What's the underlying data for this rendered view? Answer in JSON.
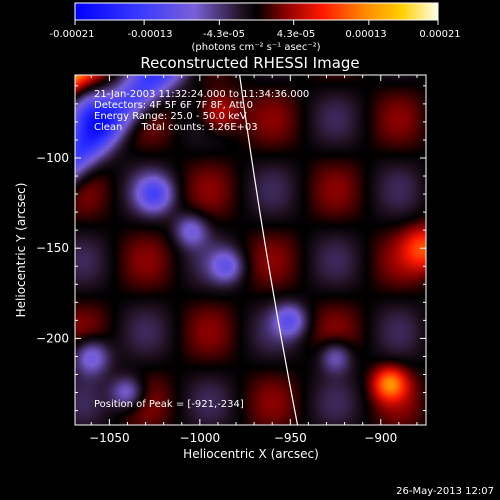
{
  "chart_data": {
    "type": "heatmap",
    "title": "Reconstructed RHESSI Image",
    "xlabel": "Heliocentric X (arcsec)",
    "ylabel": "Heliocentric Y (arcsec)",
    "xlim": [
      -1069,
      -875
    ],
    "ylim": [
      -248,
      -54
    ],
    "x_ticks": [
      -1050,
      -1000,
      -950,
      -900
    ],
    "x_tick_labels": [
      "−1050",
      "−1000",
      "−950",
      "−900"
    ],
    "y_ticks": [
      -100,
      -150,
      -200
    ],
    "y_tick_labels": [
      "−100",
      "−150",
      "−200"
    ],
    "colorbar": {
      "range": [
        -0.00021,
        0.00021
      ],
      "tick_values": [
        -0.00021,
        -0.00013,
        -4.3e-05,
        4.3e-05,
        0.00013,
        0.00021
      ],
      "tick_labels": [
        "-0.00021",
        "-0.00013",
        "-4.3e-05",
        "4.3e-05",
        "0.00013",
        "0.00021"
      ],
      "unit_label": "(photons cm⁻² s⁻¹ asec⁻²)"
    },
    "annotations": [
      "21-Jan-2003 11:32:24.000 to 11:34:36.000",
      "Detectors: 4F 5F 6F 7F 8F, Att 0",
      "Energy Range: 25.0 - 50.0 keV",
      "Clean      Total counts: 3.26E+03"
    ],
    "peak_label": "Position of Peak = [-921,-234]",
    "peak_position": [
      -921,
      -234
    ],
    "limb_curve": [
      [
        -978,
        -54
      ],
      [
        -965,
        -150
      ],
      [
        -946,
        -248
      ]
    ],
    "field": {
      "ridges": [
        {
          "c": -1120,
          "amp": 1.0,
          "w": 20
        },
        {
          "c": -1025,
          "amp": 0.9,
          "w": 20
        },
        {
          "c": -1170,
          "amp": 0.7,
          "w": 16
        },
        {
          "c": -1220,
          "amp": 0.55,
          "w": 16
        }
      ],
      "troughs": [
        {
          "c": -1070,
          "amp": -1.0,
          "w": 17
        },
        {
          "c": -970,
          "amp": -0.7,
          "w": 16
        },
        {
          "c": -1145,
          "amp": -0.3,
          "w": 12
        },
        {
          "c": -1195,
          "amp": -0.35,
          "w": 12
        }
      ],
      "blobs": [
        {
          "x": -1025,
          "y": -120,
          "amp": -0.5,
          "r": 10
        },
        {
          "x": -1005,
          "y": -140,
          "amp": -0.4,
          "r": 9
        },
        {
          "x": -985,
          "y": -160,
          "amp": -0.4,
          "r": 9
        },
        {
          "x": -950,
          "y": -190,
          "amp": -0.45,
          "r": 9
        },
        {
          "x": -925,
          "y": -210,
          "amp": -0.4,
          "r": 9
        },
        {
          "x": -1060,
          "y": -210,
          "amp": -0.5,
          "r": 10
        },
        {
          "x": -1040,
          "y": -230,
          "amp": -0.45,
          "r": 9
        },
        {
          "x": -1060,
          "y": -75,
          "amp": -0.45,
          "r": 12
        },
        {
          "x": -895,
          "y": -225,
          "amp": 0.6,
          "r": 9
        },
        {
          "x": -875,
          "y": -150,
          "amp": 0.5,
          "r": 12
        },
        {
          "x": -990,
          "y": -75,
          "amp": 0.4,
          "r": 12
        }
      ]
    }
  },
  "footer": {
    "timestamp": "26-May-2013 12:07"
  }
}
